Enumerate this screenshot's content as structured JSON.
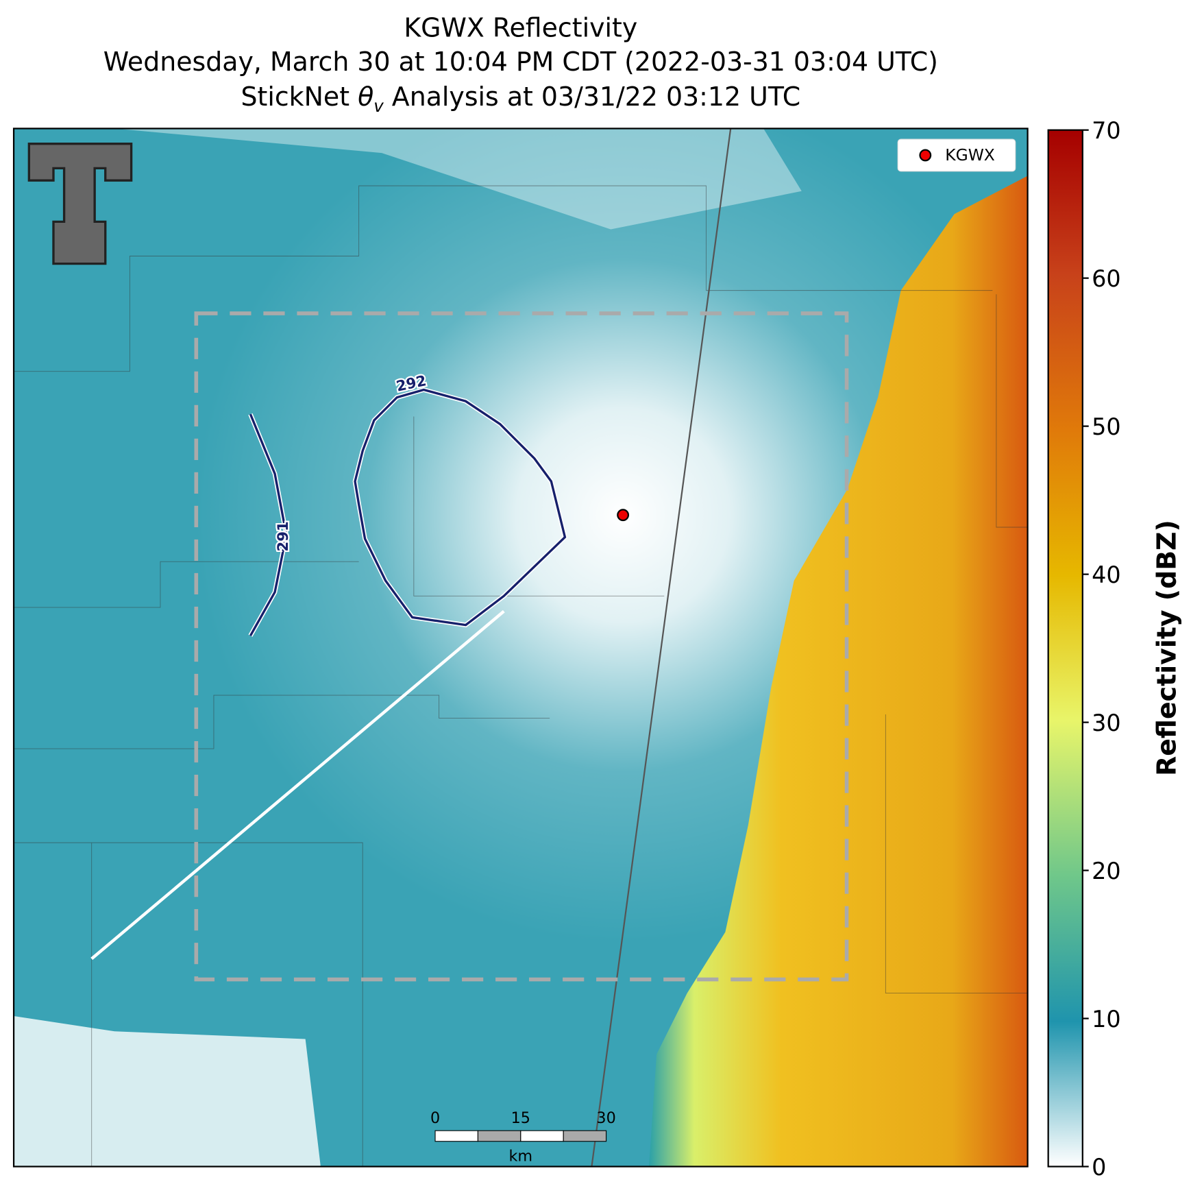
{
  "header": {
    "line1": "KGWX Reflectivity",
    "line2": "Wednesday, March 30 at 10:04 PM CDT (2022-03-31 03:04 UTC)",
    "line3": {
      "before": "StickNet ",
      "symbol": "θ",
      "sub": "v",
      "after": " Analysis at 03/31/22 03:12 UTC"
    }
  },
  "legend": {
    "label": "KGWX"
  },
  "contours": [
    {
      "label": "292"
    },
    {
      "label": "291"
    }
  ],
  "scalebar": {
    "ticks": [
      "0",
      "15",
      "30"
    ],
    "unit": "km"
  },
  "colorbar": {
    "label": "Reflectivity (dBZ)",
    "ylim": [
      0,
      70
    ],
    "yticks": [
      0,
      10,
      20,
      30,
      40,
      50,
      60,
      70
    ]
  }
}
